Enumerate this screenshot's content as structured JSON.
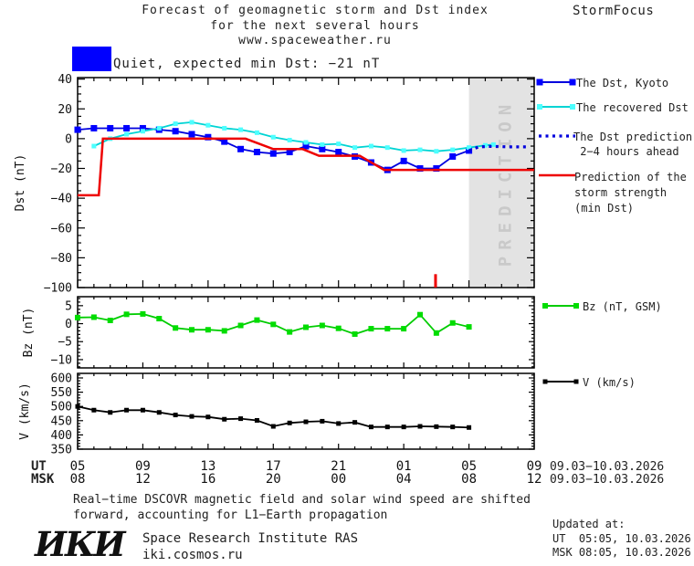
{
  "header": {
    "title_line1": "Forecast of geomagnetic storm and Dst index",
    "title_line2": "for the next several hours",
    "title_line3": "www.spaceweather.ru",
    "brand": "StormFocus"
  },
  "banner": {
    "swatch_color": "#0000ff",
    "text": "Quiet, expected min Dst: −21 nT"
  },
  "legend": {
    "dst_kyoto": "The Dst, Kyoto",
    "recovered": "The recovered Dst",
    "prediction": "The Dst prediction\n 2−4 hours ahead",
    "storm": "Prediction of the\nstorm strength\n(min Dst)",
    "bz": "Bz (nT, GSM)",
    "v": "V (km/s)"
  },
  "axis": {
    "ut_label": "UT",
    "msk_label": "MSK",
    "ut_date": "09.03−10.03.2026",
    "msk_date": "09.03−10.03.2026"
  },
  "footer": {
    "note_line1": "Real−time DSCOVR magnetic field and solar wind speed are shifted",
    "note_line2": "forward, accounting for L1−Earth propagation",
    "logo": "ИКИ",
    "institute": "Space Research Institute RAS",
    "site": "iki.cosmos.ru"
  },
  "updated": {
    "title": "Updated at:",
    "ut": "UT  05:05, 10.03.2026",
    "msk": "MSK 08:05, 10.03.2026"
  },
  "chart_data": {
    "type": "line",
    "x_unit": "hours since 05:00 UT 09.03.2026",
    "x_range": [
      0,
      28
    ],
    "x_major_ticks": [
      0,
      4,
      8,
      12,
      16,
      20,
      24,
      28
    ],
    "x_tick_labels_ut": [
      "05",
      "09",
      "13",
      "17",
      "21",
      "01",
      "05",
      "09"
    ],
    "x_tick_labels_msk": [
      "08",
      "12",
      "16",
      "20",
      "00",
      "04",
      "08",
      "12"
    ],
    "grid": false,
    "legend_position": "right",
    "prediction_band": {
      "start_hour": 24,
      "end_hour": 28,
      "label": "PREDICTION",
      "color": "#e3e3e3",
      "text_color": "#c9c9c9"
    },
    "panels": [
      {
        "id": "dst",
        "ylabel": "Dst (nT)",
        "ylim": [
          -100,
          41
        ],
        "yticks": [
          40,
          20,
          0,
          -20,
          -40,
          -60,
          -80,
          -100
        ],
        "y_minor_step": 5,
        "series": [
          {
            "name": "The Dst, Kyoto",
            "color": "#0000dd",
            "marker": "square",
            "marker_color": "#0000ff",
            "marker_size": 7,
            "x": [
              0,
              1,
              2,
              3,
              4,
              5,
              6,
              7,
              8,
              9,
              10,
              11,
              12,
              13,
              14,
              15,
              16,
              17,
              18,
              19,
              20,
              21,
              22,
              23,
              24
            ],
            "values": [
              6,
              7,
              7,
              7,
              7,
              6,
              5,
              3,
              1,
              -2,
              -7,
              -9,
              -10,
              -9,
              -5,
              -7,
              -9,
              -12,
              -16,
              -21,
              -15,
              -20,
              -20,
              -12,
              -8
            ]
          },
          {
            "name": "The recovered Dst",
            "color": "#00d4d4",
            "marker": "square",
            "marker_color": "#4dffff",
            "marker_size": 5,
            "x": [
              1,
              2,
              3,
              4,
              5,
              6,
              7,
              8,
              9,
              10,
              11,
              12,
              13,
              14,
              15,
              16,
              17,
              18,
              19,
              20,
              21,
              22,
              23,
              24,
              25,
              25.5
            ],
            "values": [
              -5,
              0,
              3,
              5,
              7,
              10,
              11,
              9,
              7,
              6,
              4,
              1,
              -1,
              -2.5,
              -4,
              -3.5,
              -6,
              -5,
              -6,
              -8,
              -7.5,
              -8.5,
              -7.5,
              -6,
              -4.5,
              -4
            ]
          },
          {
            "name": "The Dst prediction 2−4 hours ahead",
            "color": "#0000dd",
            "style": "dotted",
            "x": [
              24,
              24.6,
              25.2,
              25.8,
              26.4,
              27,
              27.5
            ],
            "values": [
              -8,
              -5.5,
              -5.2,
              -5.3,
              -5.5,
              -5.5,
              -5.5
            ]
          },
          {
            "name": "Prediction of the storm strength (min Dst)",
            "color": "#ee0000",
            "line_width": 2.5,
            "x": [
              0,
              1.3,
              1.55,
              10.3,
              12,
              13.8,
              14.8,
              17.3,
              18.8,
              28
            ],
            "values": [
              -38,
              -38,
              0,
              0,
              -7,
              -7,
              -11.5,
              -11.5,
              -21,
              -21
            ]
          }
        ],
        "min_dst_time_marker": {
          "hour": 21.95,
          "from": -91,
          "to": -100,
          "color": "#ee0000"
        },
        "expected_min_dst_nt": -21
      },
      {
        "id": "bz",
        "ylabel": "Bz (nT)",
        "ylim": [
          -12.3,
          7.5
        ],
        "yticks": [
          5,
          0,
          -5,
          -10
        ],
        "y_minor_step": 1,
        "series": [
          {
            "name": "Bz (nT, GSM)",
            "color": "#00cc00",
            "marker": "square",
            "marker_color": "#00dd00",
            "marker_size": 6,
            "x": [
              0,
              1,
              2,
              3,
              4,
              5,
              6,
              7,
              8,
              9,
              10,
              11,
              12,
              13,
              14,
              15,
              16,
              17,
              18,
              19,
              20,
              21,
              22,
              23,
              24
            ],
            "values": [
              1.7,
              1.8,
              0.9,
              2.6,
              2.7,
              1.4,
              -1.2,
              -1.7,
              -1.7,
              -2.0,
              -0.5,
              1.0,
              -0.2,
              -2.3,
              -1.0,
              -0.5,
              -1.3,
              -2.9,
              -1.4,
              -1.4,
              -1.4,
              2.5,
              -2.6,
              0.2,
              -0.9
            ]
          }
        ]
      },
      {
        "id": "v",
        "ylabel": "V (km/s)",
        "ylim": [
          350,
          616
        ],
        "yticks": [
          600,
          550,
          500,
          450,
          400,
          350
        ],
        "y_minor_step": 10,
        "series": [
          {
            "name": "V (km/s)",
            "color": "#000000",
            "marker": "square",
            "marker_color": "#000000",
            "marker_size": 5,
            "x": [
              0,
              1,
              2,
              3,
              4,
              5,
              6,
              7,
              8,
              9,
              10,
              11,
              12,
              13,
              14,
              15,
              16,
              17,
              18,
              19,
              20,
              21,
              22,
              23,
              24
            ],
            "values": [
              500,
              487,
              479,
              487,
              487,
              479,
              470,
              465,
              463,
              455,
              457,
              451,
              430,
              442,
              446,
              448,
              440,
              444,
              428,
              428,
              428,
              430,
              429,
              428,
              426
            ]
          }
        ]
      }
    ]
  }
}
